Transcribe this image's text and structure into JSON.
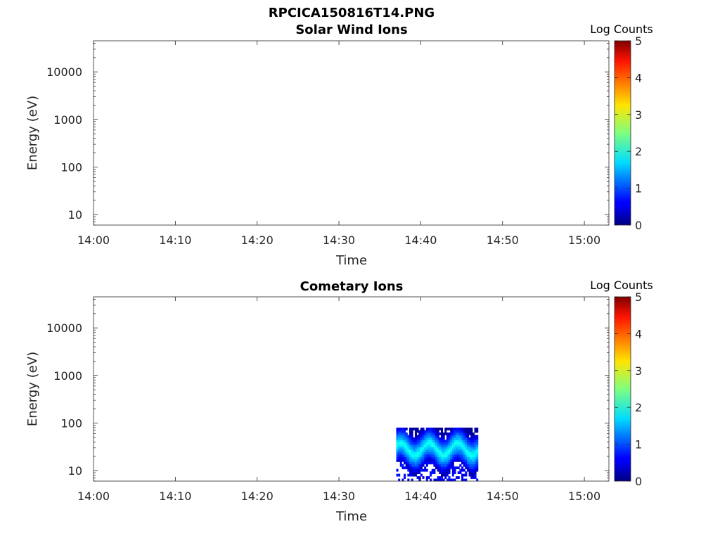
{
  "figure_title": "RPCICA150816T14.PNG",
  "colorbar": {
    "label": "Log Counts",
    "min": 0,
    "max": 5,
    "ticks": [
      "0",
      "1",
      "2",
      "3",
      "4",
      "5"
    ],
    "colormap": "jet"
  },
  "chart_data": [
    {
      "type": "heatmap",
      "title": "Solar Wind Ions",
      "xlabel": "Time",
      "ylabel": "Energy (eV)",
      "x_ticks": [
        "14:00",
        "14:10",
        "14:20",
        "14:30",
        "14:40",
        "14:50",
        "15:00"
      ],
      "y_ticks": [
        "10",
        "100",
        "1000",
        "10000"
      ],
      "y_scale": "log",
      "xlim": [
        "14:00",
        "15:03"
      ],
      "ylim": [
        6,
        45000
      ],
      "data": []
    },
    {
      "type": "heatmap",
      "title": "Cometary Ions",
      "xlabel": "Time",
      "ylabel": "Energy (eV)",
      "x_ticks": [
        "14:00",
        "14:10",
        "14:20",
        "14:30",
        "14:40",
        "14:50",
        "15:00"
      ],
      "y_ticks": [
        "10",
        "100",
        "1000",
        "10000"
      ],
      "y_scale": "log",
      "xlim": [
        "14:00",
        "15:03"
      ],
      "ylim": [
        6,
        45000
      ],
      "active_interval": {
        "time_start": "14:37",
        "time_end": "14:47",
        "energy_min_eV": 6,
        "energy_max_eV": 80,
        "log_counts_range": [
          0,
          2
        ],
        "oscillation_period_min": 3.5
      }
    }
  ]
}
